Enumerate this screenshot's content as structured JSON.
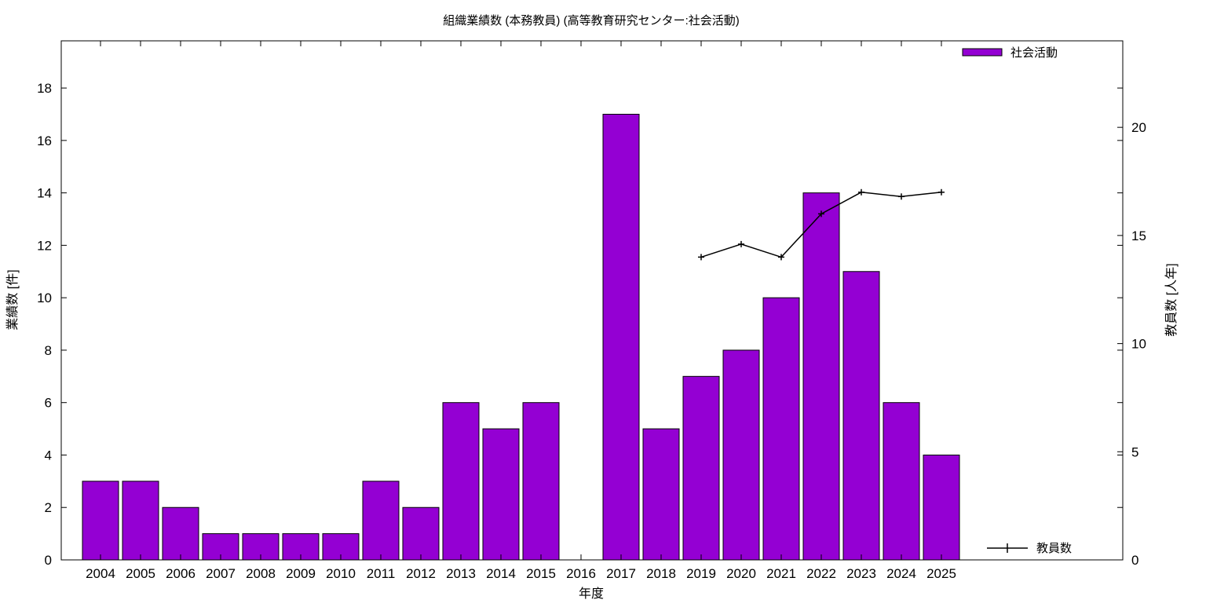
{
  "chart_data": {
    "type": "bar",
    "title": "組織業績数 (本務教員) (高等教育研究センター:社会活動)",
    "xlabel": "年度",
    "ylabel": "業績数 [件]",
    "y2label": "教員数 [人年]",
    "categories": [
      "2004",
      "2005",
      "2006",
      "2007",
      "2008",
      "2009",
      "2010",
      "2011",
      "2012",
      "2013",
      "2014",
      "2015",
      "2016",
      "2017",
      "2018",
      "2019",
      "2020",
      "2021",
      "2022",
      "2023",
      "2024",
      "2025"
    ],
    "series": [
      {
        "name": "社会活動",
        "type": "bar",
        "axis": "left",
        "color": "#9400d3",
        "values": [
          3,
          3,
          2,
          1,
          1,
          1,
          1,
          3,
          2,
          6,
          5,
          6,
          0,
          17,
          5,
          7,
          8,
          10,
          14,
          11,
          6,
          4
        ]
      },
      {
        "name": "教員数",
        "type": "line",
        "axis": "right",
        "color": "#000000",
        "values": [
          null,
          null,
          null,
          null,
          null,
          null,
          null,
          null,
          null,
          null,
          null,
          null,
          null,
          null,
          null,
          14,
          14.6,
          14,
          16,
          17,
          16.8,
          17
        ]
      }
    ],
    "ylim": [
      0,
      19.8
    ],
    "y2lim": [
      0,
      24
    ],
    "yticks": [
      0,
      2,
      4,
      6,
      8,
      10,
      12,
      14,
      16,
      18
    ],
    "y2ticks": [
      0,
      5,
      10,
      15,
      20
    ],
    "grid": false,
    "legend_placement": "top-right (bars), bottom-right (line)"
  }
}
